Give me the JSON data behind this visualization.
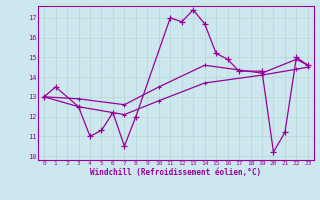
{
  "xlabel": "Windchill (Refroidissement éolien,°C)",
  "line_color": "#990099",
  "background_color": "#cce8ee",
  "grid_color": "#aacccc",
  "xlim": [
    -0.5,
    23.5
  ],
  "ylim": [
    9.8,
    17.6
  ],
  "yticks": [
    10,
    11,
    12,
    13,
    14,
    15,
    16,
    17
  ],
  "xticks": [
    0,
    1,
    2,
    3,
    4,
    5,
    6,
    7,
    8,
    9,
    10,
    11,
    12,
    13,
    14,
    15,
    16,
    17,
    18,
    19,
    20,
    21,
    22,
    23
  ],
  "line1_x": [
    0,
    1,
    3,
    4,
    5,
    6,
    7,
    8,
    11,
    12,
    13,
    14,
    15,
    16,
    17,
    19,
    20,
    21,
    22,
    23
  ],
  "line1_y": [
    13.0,
    13.5,
    12.5,
    11.0,
    11.3,
    12.2,
    10.5,
    12.0,
    17.0,
    16.8,
    17.4,
    16.7,
    15.2,
    14.9,
    14.3,
    14.3,
    10.2,
    11.2,
    15.0,
    14.6
  ],
  "line2_x": [
    0,
    3,
    7,
    10,
    14,
    19,
    22,
    23
  ],
  "line2_y": [
    13.0,
    12.5,
    12.1,
    12.8,
    13.7,
    14.1,
    14.4,
    14.5
  ],
  "line3_x": [
    0,
    3,
    7,
    10,
    14,
    19,
    22,
    23
  ],
  "line3_y": [
    13.0,
    12.9,
    12.6,
    13.5,
    14.6,
    14.2,
    14.9,
    14.6
  ]
}
